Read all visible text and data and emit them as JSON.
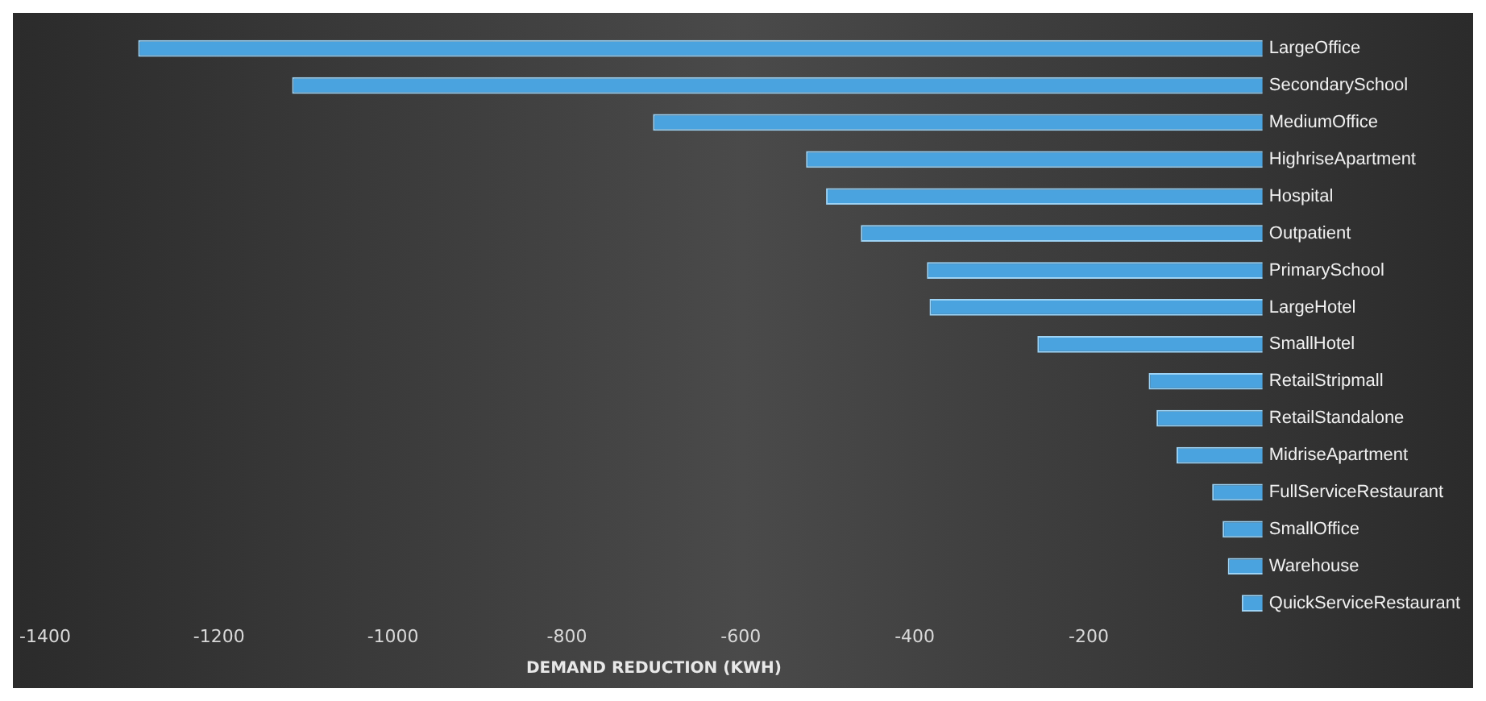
{
  "chart_data": {
    "type": "bar",
    "orientation": "horizontal",
    "xlabel": "DEMAND REDUCTION (KWH)",
    "categories": [
      "LargeOffice",
      "SecondarySchool",
      "MediumOffice",
      "HighriseApartment",
      "Hospital",
      "Outpatient",
      "PrimarySchool",
      "LargeHotel",
      "SmallHotel",
      "RetailStripmall",
      "RetailStandalone",
      "MidriseApartment",
      "FullServiceRestaurant",
      "SmallOffice",
      "Warehouse",
      "QuickServiceRestaurant"
    ],
    "values": [
      -1293,
      -1116,
      -701,
      -525,
      -502,
      -462,
      -386,
      -383,
      -259,
      -131,
      -122,
      -99,
      -58,
      -46,
      -40,
      -24
    ],
    "color": "#4aa3df",
    "xlim": [
      -1400,
      0
    ],
    "xticks": [
      -1400,
      -1200,
      -1000,
      -800,
      -600,
      -400,
      -200
    ],
    "grid": false,
    "legend": false
  }
}
